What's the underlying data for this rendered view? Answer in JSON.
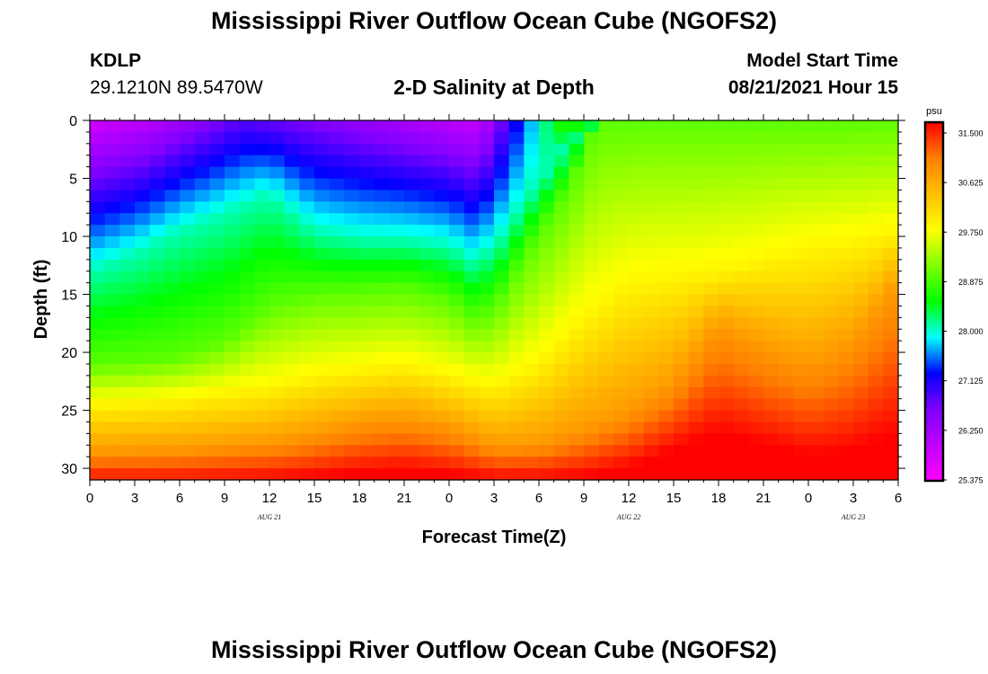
{
  "header": {
    "title": "Mississippi River Outflow Ocean Cube (NGOFS2)",
    "station": "KDLP",
    "coords": "29.1210N  89.5470W",
    "subtitle": "2-D Salinity at Depth",
    "model_label": "Model Start Time",
    "model_time": "08/21/2021 Hour 15"
  },
  "footer": {
    "title": "Mississippi River Outflow Ocean Cube (NGOFS2)"
  },
  "colors": {
    "scale": [
      "#ff00ff",
      "#bf00ff",
      "#7f00ff",
      "#0000ff",
      "#00ffff",
      "#00ff00",
      "#7fff00",
      "#ffff00",
      "#ffbf00",
      "#ff7f00",
      "#ff0000"
    ]
  },
  "chart_data": {
    "type": "heatmap",
    "variable": "salinity",
    "xlabel": "Forecast Time(Z)",
    "ylabel": "Depth (ft)",
    "xlim": [
      0,
      54
    ],
    "ylim": [
      0,
      31
    ],
    "x_ticks": [
      0,
      3,
      6,
      9,
      12,
      15,
      18,
      21,
      24,
      27,
      30,
      33,
      36,
      39,
      42,
      45,
      48,
      51,
      54
    ],
    "x_tick_labels": [
      "0",
      "3",
      "6",
      "9",
      "12",
      "15",
      "18",
      "21",
      "0",
      "3",
      "6",
      "9",
      "12",
      "15",
      "18",
      "21",
      "0",
      "3",
      "6"
    ],
    "y_ticks": [
      0,
      5,
      10,
      15,
      20,
      25,
      30
    ],
    "y_tick_labels": [
      "0",
      "5",
      "10",
      "15",
      "20",
      "25",
      "30"
    ],
    "day_labels": [
      {
        "x": 12,
        "label": "AUG  21"
      },
      {
        "x": 36,
        "label": "AUG  22"
      },
      {
        "x": 51,
        "label": "AUG  23"
      }
    ],
    "colorbar": {
      "unit": "psu",
      "min": 25.375,
      "max": 31.5,
      "labels": [
        "31.500",
        "30.625",
        "29.750",
        "28.875",
        "28.000",
        "27.125",
        "26.250",
        "25.375"
      ]
    },
    "grid": {
      "nx": 54,
      "ny": 31
    },
    "boundaries": [
      {
        "value": 28.0,
        "depth": [
          [
            0,
            13
          ],
          [
            3,
            11.5
          ],
          [
            6,
            9.5
          ],
          [
            9,
            8
          ],
          [
            12,
            6.3
          ],
          [
            15,
            9.5
          ],
          [
            18,
            10.2
          ],
          [
            21,
            10.3
          ],
          [
            24,
            10.8
          ],
          [
            25.5,
            12
          ],
          [
            27,
            11
          ],
          [
            29,
            7
          ],
          [
            31,
            3.5
          ],
          [
            33,
            0
          ]
        ]
      },
      {
        "value": 28.875,
        "depth": [
          [
            0,
            21
          ],
          [
            3,
            20.8
          ],
          [
            6,
            20.3
          ],
          [
            9,
            19
          ],
          [
            12,
            16
          ],
          [
            15,
            15
          ],
          [
            18,
            14.8
          ],
          [
            21,
            14.5
          ],
          [
            24,
            15.5
          ],
          [
            25.5,
            17
          ],
          [
            27,
            16.5
          ],
          [
            29,
            12
          ],
          [
            32,
            6
          ],
          [
            34,
            0
          ]
        ]
      },
      {
        "value": 29.75,
        "depth": [
          [
            0,
            24.5
          ],
          [
            3,
            24.3
          ],
          [
            6,
            24
          ],
          [
            9,
            23.5
          ],
          [
            12,
            23
          ],
          [
            15,
            22
          ],
          [
            18,
            21.5
          ],
          [
            21,
            21
          ],
          [
            24,
            22
          ],
          [
            27,
            23
          ],
          [
            30,
            21
          ],
          [
            33,
            17
          ],
          [
            36,
            14
          ],
          [
            39,
            13.5
          ],
          [
            42,
            13
          ],
          [
            45,
            12
          ],
          [
            48,
            11
          ],
          [
            51,
            10.5
          ],
          [
            54,
            9.5
          ]
        ]
      },
      {
        "value": 30.625,
        "depth": [
          [
            0,
            28.5
          ],
          [
            3,
            28.4
          ],
          [
            6,
            28.3
          ],
          [
            9,
            28
          ],
          [
            12,
            27.7
          ],
          [
            15,
            27
          ],
          [
            18,
            26
          ],
          [
            21,
            25.6
          ],
          [
            24,
            26.3
          ],
          [
            27,
            28
          ],
          [
            30,
            27.8
          ],
          [
            33,
            26.5
          ],
          [
            36,
            25
          ],
          [
            39,
            22.5
          ],
          [
            42,
            17.5
          ],
          [
            45,
            19.5
          ],
          [
            48,
            21
          ],
          [
            51,
            19
          ],
          [
            54,
            14
          ]
        ]
      },
      {
        "value": 31.5,
        "depth": [
          [
            0,
            31.2
          ],
          [
            3,
            31.2
          ],
          [
            6,
            31.2
          ],
          [
            9,
            31.1
          ],
          [
            12,
            31
          ],
          [
            15,
            30.8
          ],
          [
            18,
            30.5
          ],
          [
            21,
            30.2
          ],
          [
            24,
            30.6
          ],
          [
            27,
            31
          ],
          [
            30,
            31
          ],
          [
            33,
            30.8
          ],
          [
            36,
            30
          ],
          [
            39,
            28.5
          ],
          [
            42,
            27
          ],
          [
            45,
            28
          ],
          [
            48,
            29
          ],
          [
            51,
            28.5
          ],
          [
            54,
            27
          ]
        ]
      }
    ]
  }
}
